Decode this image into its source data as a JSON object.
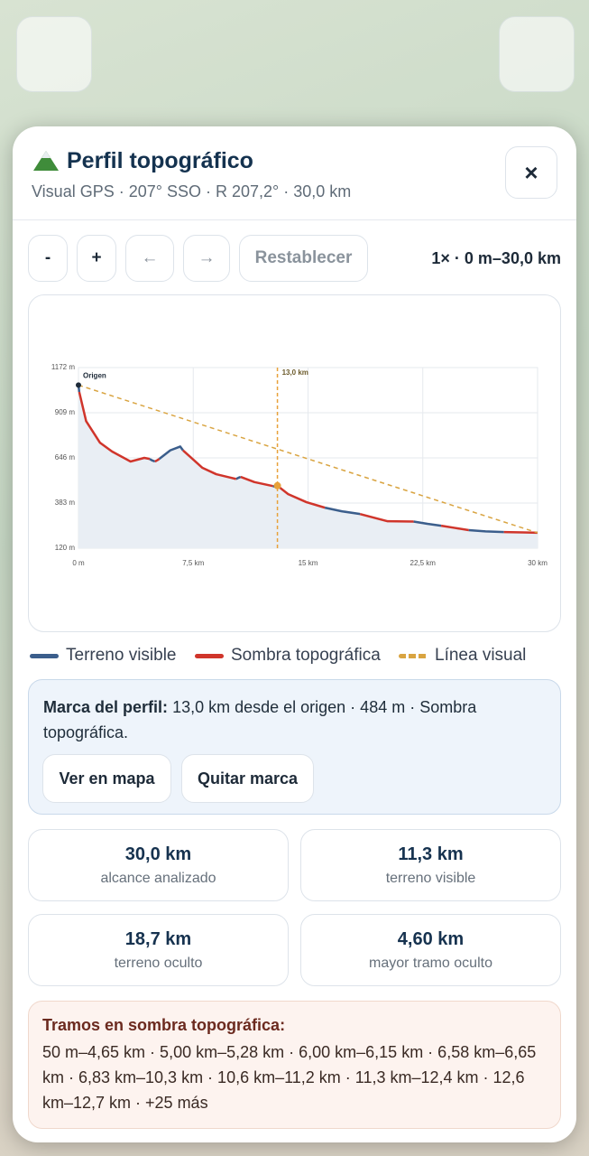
{
  "header": {
    "title": "Perfil topográfico",
    "subtitle": "Visual GPS · 207° SSO · R 207,2° · 30,0 km",
    "close": "×"
  },
  "controls": {
    "buttons": [
      "-",
      "+",
      "←",
      "→",
      "Restablecer"
    ],
    "status": "1× · 0 m–30,0 km"
  },
  "chart_data": {
    "type": "line",
    "x": [
      0,
      0.05,
      0.5,
      1.4,
      2.2,
      3.4,
      4.3,
      4.65,
      4.8,
      5.0,
      5.14,
      5.28,
      6.0,
      6.65,
      6.83,
      8.1,
      9.0,
      10.3,
      10.45,
      10.6,
      11.5,
      12.7,
      12.85,
      13.0,
      13.7,
      14.9,
      16.1,
      17.2,
      18.4,
      20.2,
      21.9,
      22.8,
      23.7,
      24.6,
      25.5,
      26.6,
      27.8,
      29,
      30
    ],
    "series": [
      {
        "name": "Terreno visible",
        "color": "#3b5e8c",
        "values": [
          1070,
          1030,
          null,
          null,
          null,
          null,
          null,
          640,
          632,
          625,
          null,
          640,
          690,
          712,
          690,
          null,
          null,
          523,
          530,
          535,
          null,
          482,
          478,
          484,
          null,
          null,
          356,
          335,
          319,
          null,
          275,
          262,
          251,
          null,
          225,
          218,
          214,
          null,
          null
        ]
      },
      {
        "name": "Sombra topográfica",
        "color": "#d0352b",
        "values": [
          null,
          1030,
          860,
          735,
          683,
          625,
          646,
          640,
          null,
          625,
          632,
          640,
          null,
          null,
          690,
          588,
          551,
          523,
          null,
          535,
          505,
          482,
          null,
          484,
          435,
          388,
          356,
          null,
          319,
          277,
          275,
          null,
          251,
          238,
          225,
          null,
          214,
          212,
          210
        ]
      },
      {
        "name": "Línea visual",
        "color": "#d9a441",
        "dashed": true,
        "x": [
          0,
          30
        ],
        "values": [
          1070,
          210
        ]
      }
    ],
    "xlim": [
      0,
      30
    ],
    "ylim": [
      120,
      1172
    ],
    "xticks": [
      {
        "value": 0,
        "label": "0 m"
      },
      {
        "value": 7.5,
        "label": "7,5 km"
      },
      {
        "value": 15,
        "label": "15 km"
      },
      {
        "value": 22.5,
        "label": "22,5 km"
      },
      {
        "value": 30,
        "label": "30 km"
      }
    ],
    "yticks": [
      {
        "value": 120,
        "label": "120 m"
      },
      {
        "value": 383,
        "label": "383 m"
      },
      {
        "value": 646,
        "label": "646 m"
      },
      {
        "value": 909,
        "label": "909 m"
      },
      {
        "value": 1172,
        "label": "1172 m"
      }
    ],
    "grid": true,
    "origin_label": "Origen",
    "marker": {
      "value": 13,
      "label": "13,0 km",
      "color": "#e8a13a"
    }
  },
  "mark_info": {
    "label": "Marca del perfil:",
    "text": "13,0 km desde el origen · 484 m · Sombra topográfica.",
    "buttons": [
      "Ver en mapa",
      "Quitar marca"
    ]
  },
  "stats": [
    {
      "value": "30,0 km",
      "label": "alcance analizado"
    },
    {
      "value": "11,3 km",
      "label": "terreno visible"
    },
    {
      "value": "18,7 km",
      "label": "terreno oculto"
    },
    {
      "value": "4,60 km",
      "label": "mayor tramo oculto"
    }
  ],
  "shadows": {
    "title": "Tramos en sombra topográfica:",
    "text": "50 m–4,65 km · 5,00 km–5,28 km · 6,00 km–6,15 km · 6,58 km–6,65 km · 6,83 km–10,3 km · 10,6 km–11,2 km · 11,3 km–12,4 km · 12,6 km–12,7 km · +25 más"
  }
}
